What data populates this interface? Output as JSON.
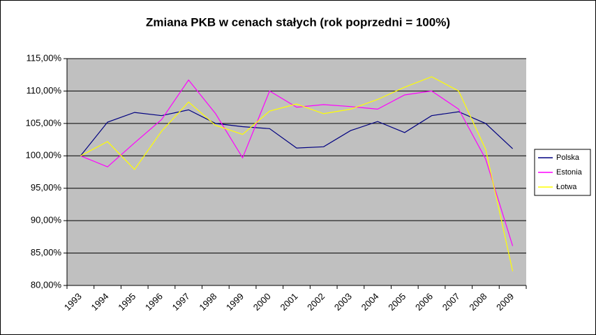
{
  "chart_data": {
    "type": "line",
    "title": "Zmiana PKB w cenach stałych (rok poprzedni = 100%)",
    "categories": [
      "1993",
      "1994",
      "1995",
      "1996",
      "1997",
      "1998",
      "1999",
      "2000",
      "2001",
      "2002",
      "2003",
      "2004",
      "2005",
      "2006",
      "2007",
      "2008",
      "2009"
    ],
    "series": [
      {
        "name": "Polska",
        "color": "#000080",
        "values": [
          100,
          105.2,
          106.7,
          106.2,
          107.1,
          105,
          104.5,
          104.2,
          101.2,
          101.4,
          103.9,
          105.3,
          103.6,
          106.2,
          106.8,
          105,
          101.1
        ]
      },
      {
        "name": "Estonia",
        "color": "#ff00ff",
        "values": [
          100,
          98.3,
          102,
          105.6,
          111.7,
          106.5,
          99.7,
          110,
          107.5,
          107.9,
          107.6,
          107.2,
          109.4,
          110,
          107.2,
          99.5,
          86.1
        ]
      },
      {
        "name": "Łotwa",
        "color": "#ffff00",
        "values": [
          100,
          102.2,
          97.9,
          103.8,
          108.3,
          104.7,
          103.3,
          106.9,
          108,
          106.5,
          107.2,
          108.7,
          110.6,
          112.2,
          110,
          101,
          82.2
        ]
      }
    ],
    "ylim": [
      80,
      115
    ],
    "yticks": [
      {
        "value": 80,
        "label": "80,00%"
      },
      {
        "value": 85,
        "label": "85,00%"
      },
      {
        "value": 90,
        "label": "90,00%"
      },
      {
        "value": 95,
        "label": "95,00%"
      },
      {
        "value": 100,
        "label": "100,00%"
      },
      {
        "value": 105,
        "label": "105,00%"
      },
      {
        "value": 110,
        "label": "110,00%"
      },
      {
        "value": 115,
        "label": "115,00%"
      }
    ],
    "grid": true,
    "legend": "right"
  }
}
